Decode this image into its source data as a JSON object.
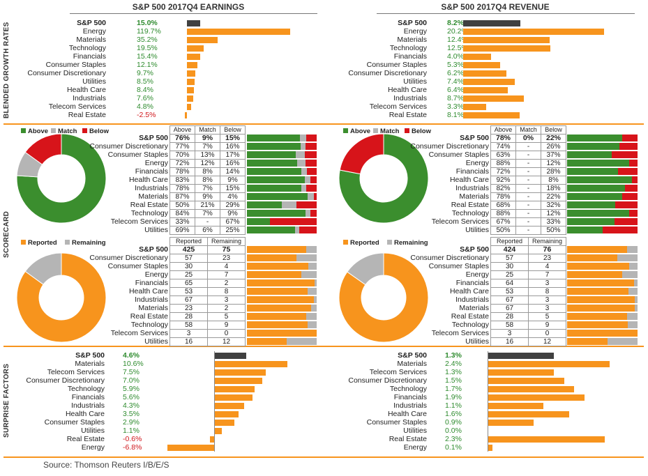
{
  "colors": {
    "orange": "#f7941d",
    "dark": "#404040",
    "green": "#3b8e2e",
    "gray": "#b5b5b5",
    "red": "#d7141a",
    "pos_text": "#2e8b2e",
    "neg_text": "#d0161b"
  },
  "titles": {
    "earnings": "S&P 500 2017Q4 EARNINGS",
    "revenue": "S&P 500 2017Q4 REVENUE"
  },
  "side_labels": {
    "growth": "BLENDED GROWTH RATES",
    "scorecard": "SCORECARD",
    "surprise": "SURPRISE FACTORS"
  },
  "source": "Source: Thomson Reuters I/B/E/S",
  "chart_data": [
    {
      "id": "earnings_growth",
      "type": "bar",
      "title": "",
      "categories": [
        "S&P 500",
        "Energy",
        "Materials",
        "Technology",
        "Financials",
        "Consumer Staples",
        "Consumer Discretionary",
        "Utilities",
        "Health Care",
        "Industrials",
        "Telecom Services",
        "Real Estate"
      ],
      "labels": [
        "15.0%",
        "119.7%",
        "35.2%",
        "19.5%",
        "15.4%",
        "12.1%",
        "9.7%",
        "8.5%",
        "8.4%",
        "7.6%",
        "4.8%",
        "-2.5%"
      ],
      "values": [
        15.0,
        119.7,
        35.2,
        19.5,
        15.4,
        12.1,
        9.7,
        8.5,
        8.4,
        7.6,
        4.8,
        -2.5
      ]
    },
    {
      "id": "revenue_growth",
      "type": "bar",
      "title": "",
      "categories": [
        "S&P 500",
        "Energy",
        "Materials",
        "Technology",
        "Financials",
        "Consumer Staples",
        "Consumer Discretionary",
        "Utilities",
        "Health Care",
        "Industrials",
        "Telecom Services",
        "Real Estate"
      ],
      "labels": [
        "8.2%",
        "20.2%",
        "12.4%",
        "12.5%",
        "4.0%",
        "5.3%",
        "6.2%",
        "7.4%",
        "6.4%",
        "8.7%",
        "3.3%",
        "8.1%"
      ],
      "values": [
        8.2,
        20.2,
        12.4,
        12.5,
        4.0,
        5.3,
        6.2,
        7.4,
        6.4,
        8.7,
        3.3,
        8.1
      ]
    },
    {
      "id": "earnings_abm",
      "type": "table",
      "legend": [
        "Above",
        "Match",
        "Below"
      ],
      "headers": [
        "Above",
        "Match",
        "Below"
      ],
      "total": {
        "name": "S&P 500",
        "cells": [
          "76%",
          "9%",
          "15%"
        ]
      },
      "rows": [
        {
          "name": "Consumer Discretionary",
          "cells": [
            "77%",
            "7%",
            "16%"
          ]
        },
        {
          "name": "Consumer Staples",
          "cells": [
            "70%",
            "13%",
            "17%"
          ]
        },
        {
          "name": "Energy",
          "cells": [
            "72%",
            "12%",
            "16%"
          ]
        },
        {
          "name": "Financials",
          "cells": [
            "78%",
            "8%",
            "14%"
          ]
        },
        {
          "name": "Health Care",
          "cells": [
            "83%",
            "8%",
            "9%"
          ]
        },
        {
          "name": "Industrials",
          "cells": [
            "78%",
            "7%",
            "15%"
          ]
        },
        {
          "name": "Materials",
          "cells": [
            "87%",
            "9%",
            "4%"
          ]
        },
        {
          "name": "Real Estate",
          "cells": [
            "50%",
            "21%",
            "29%"
          ]
        },
        {
          "name": "Technology",
          "cells": [
            "84%",
            "7%",
            "9%"
          ]
        },
        {
          "name": "Telecom Services",
          "cells": [
            "33%",
            "-",
            "67%"
          ]
        },
        {
          "name": "Utilities",
          "cells": [
            "69%",
            "6%",
            "25%"
          ]
        }
      ],
      "donut": [
        76,
        9,
        15
      ]
    },
    {
      "id": "revenue_abm",
      "type": "table",
      "legend": [
        "Above",
        "Match",
        "Below"
      ],
      "headers": [
        "Above",
        "Match",
        "Below"
      ],
      "total": {
        "name": "S&P 500",
        "cells": [
          "78%",
          "0%",
          "22%"
        ]
      },
      "rows": [
        {
          "name": "Consumer Discretionary",
          "cells": [
            "74%",
            "-",
            "26%"
          ]
        },
        {
          "name": "Consumer Staples",
          "cells": [
            "63%",
            "-",
            "37%"
          ]
        },
        {
          "name": "Energy",
          "cells": [
            "88%",
            "-",
            "12%"
          ]
        },
        {
          "name": "Financials",
          "cells": [
            "72%",
            "-",
            "28%"
          ]
        },
        {
          "name": "Health Care",
          "cells": [
            "92%",
            "-",
            "8%"
          ]
        },
        {
          "name": "Industrials",
          "cells": [
            "82%",
            "-",
            "18%"
          ]
        },
        {
          "name": "Materials",
          "cells": [
            "78%",
            "-",
            "22%"
          ]
        },
        {
          "name": "Real Estate",
          "cells": [
            "68%",
            "-",
            "32%"
          ]
        },
        {
          "name": "Technology",
          "cells": [
            "88%",
            "-",
            "12%"
          ]
        },
        {
          "name": "Telecom Services",
          "cells": [
            "67%",
            "-",
            "33%"
          ]
        },
        {
          "name": "Utilities",
          "cells": [
            "50%",
            "-",
            "50%"
          ]
        }
      ],
      "donut": [
        78,
        0,
        22
      ]
    },
    {
      "id": "earnings_reported",
      "type": "table",
      "legend": [
        "Reported",
        "Remaining"
      ],
      "headers": [
        "Reported",
        "Remaining"
      ],
      "total": {
        "name": "S&P 500",
        "cells": [
          "425",
          "75"
        ]
      },
      "rows": [
        {
          "name": "Consumer Discretionary",
          "cells": [
            "57",
            "23"
          ]
        },
        {
          "name": "Consumer Staples",
          "cells": [
            "30",
            "4"
          ]
        },
        {
          "name": "Energy",
          "cells": [
            "25",
            "7"
          ]
        },
        {
          "name": "Financials",
          "cells": [
            "65",
            "2"
          ]
        },
        {
          "name": "Health Care",
          "cells": [
            "53",
            "8"
          ]
        },
        {
          "name": "Industrials",
          "cells": [
            "67",
            "3"
          ]
        },
        {
          "name": "Materials",
          "cells": [
            "23",
            "2"
          ]
        },
        {
          "name": "Real Estate",
          "cells": [
            "28",
            "5"
          ]
        },
        {
          "name": "Technology",
          "cells": [
            "58",
            "9"
          ]
        },
        {
          "name": "Telecom Services",
          "cells": [
            "3",
            "0"
          ]
        },
        {
          "name": "Utilities",
          "cells": [
            "16",
            "12"
          ]
        }
      ],
      "donut": [
        425,
        75
      ]
    },
    {
      "id": "revenue_reported",
      "type": "table",
      "legend": [
        "Reported",
        "Remaining"
      ],
      "headers": [
        "Reported",
        "Remaining"
      ],
      "total": {
        "name": "S&P 500",
        "cells": [
          "424",
          "76"
        ]
      },
      "rows": [
        {
          "name": "Consumer Discretionary",
          "cells": [
            "57",
            "23"
          ]
        },
        {
          "name": "Consumer Staples",
          "cells": [
            "30",
            "4"
          ]
        },
        {
          "name": "Energy",
          "cells": [
            "25",
            "7"
          ]
        },
        {
          "name": "Financials",
          "cells": [
            "64",
            "3"
          ]
        },
        {
          "name": "Health Care",
          "cells": [
            "53",
            "8"
          ]
        },
        {
          "name": "Industrials",
          "cells": [
            "67",
            "3"
          ]
        },
        {
          "name": "Materials",
          "cells": [
            "67",
            "3"
          ]
        },
        {
          "name": "Real Estate",
          "cells": [
            "28",
            "5"
          ]
        },
        {
          "name": "Technology",
          "cells": [
            "58",
            "9"
          ]
        },
        {
          "name": "Telecom Services",
          "cells": [
            "3",
            "0"
          ]
        },
        {
          "name": "Utilities",
          "cells": [
            "16",
            "12"
          ]
        }
      ],
      "donut": [
        424,
        76
      ]
    },
    {
      "id": "earnings_surprise",
      "type": "bar",
      "title": "",
      "categories": [
        "S&P 500",
        "Materials",
        "Telecom Services",
        "Consumer Discretionary",
        "Technology",
        "Financials",
        "Industrials",
        "Health Care",
        "Consumer Staples",
        "Utilities",
        "Real Estate",
        "Energy"
      ],
      "labels": [
        "4.6%",
        "10.6%",
        "7.5%",
        "7.0%",
        "5.9%",
        "5.6%",
        "4.3%",
        "3.5%",
        "2.9%",
        "1.1%",
        "-0.6%",
        "-6.8%"
      ],
      "values": [
        4.6,
        10.6,
        7.5,
        7.0,
        5.9,
        5.6,
        4.3,
        3.5,
        2.9,
        1.1,
        -0.6,
        -6.8
      ]
    },
    {
      "id": "revenue_surprise",
      "type": "bar",
      "title": "",
      "categories": [
        "S&P 500",
        "Materials",
        "Telecom Services",
        "Consumer Discretionary",
        "Technology",
        "Financials",
        "Industrials",
        "Health Care",
        "Consumer Staples",
        "Utilities",
        "Real Estate",
        "Energy"
      ],
      "labels": [
        "1.3%",
        "2.4%",
        "1.3%",
        "1.5%",
        "1.7%",
        "1.9%",
        "1.1%",
        "1.6%",
        "0.9%",
        "0.0%",
        "2.3%",
        "0.1%"
      ],
      "values": [
        1.3,
        2.4,
        1.3,
        1.5,
        1.7,
        1.9,
        1.1,
        1.6,
        0.9,
        0.0,
        2.3,
        0.1
      ]
    }
  ]
}
